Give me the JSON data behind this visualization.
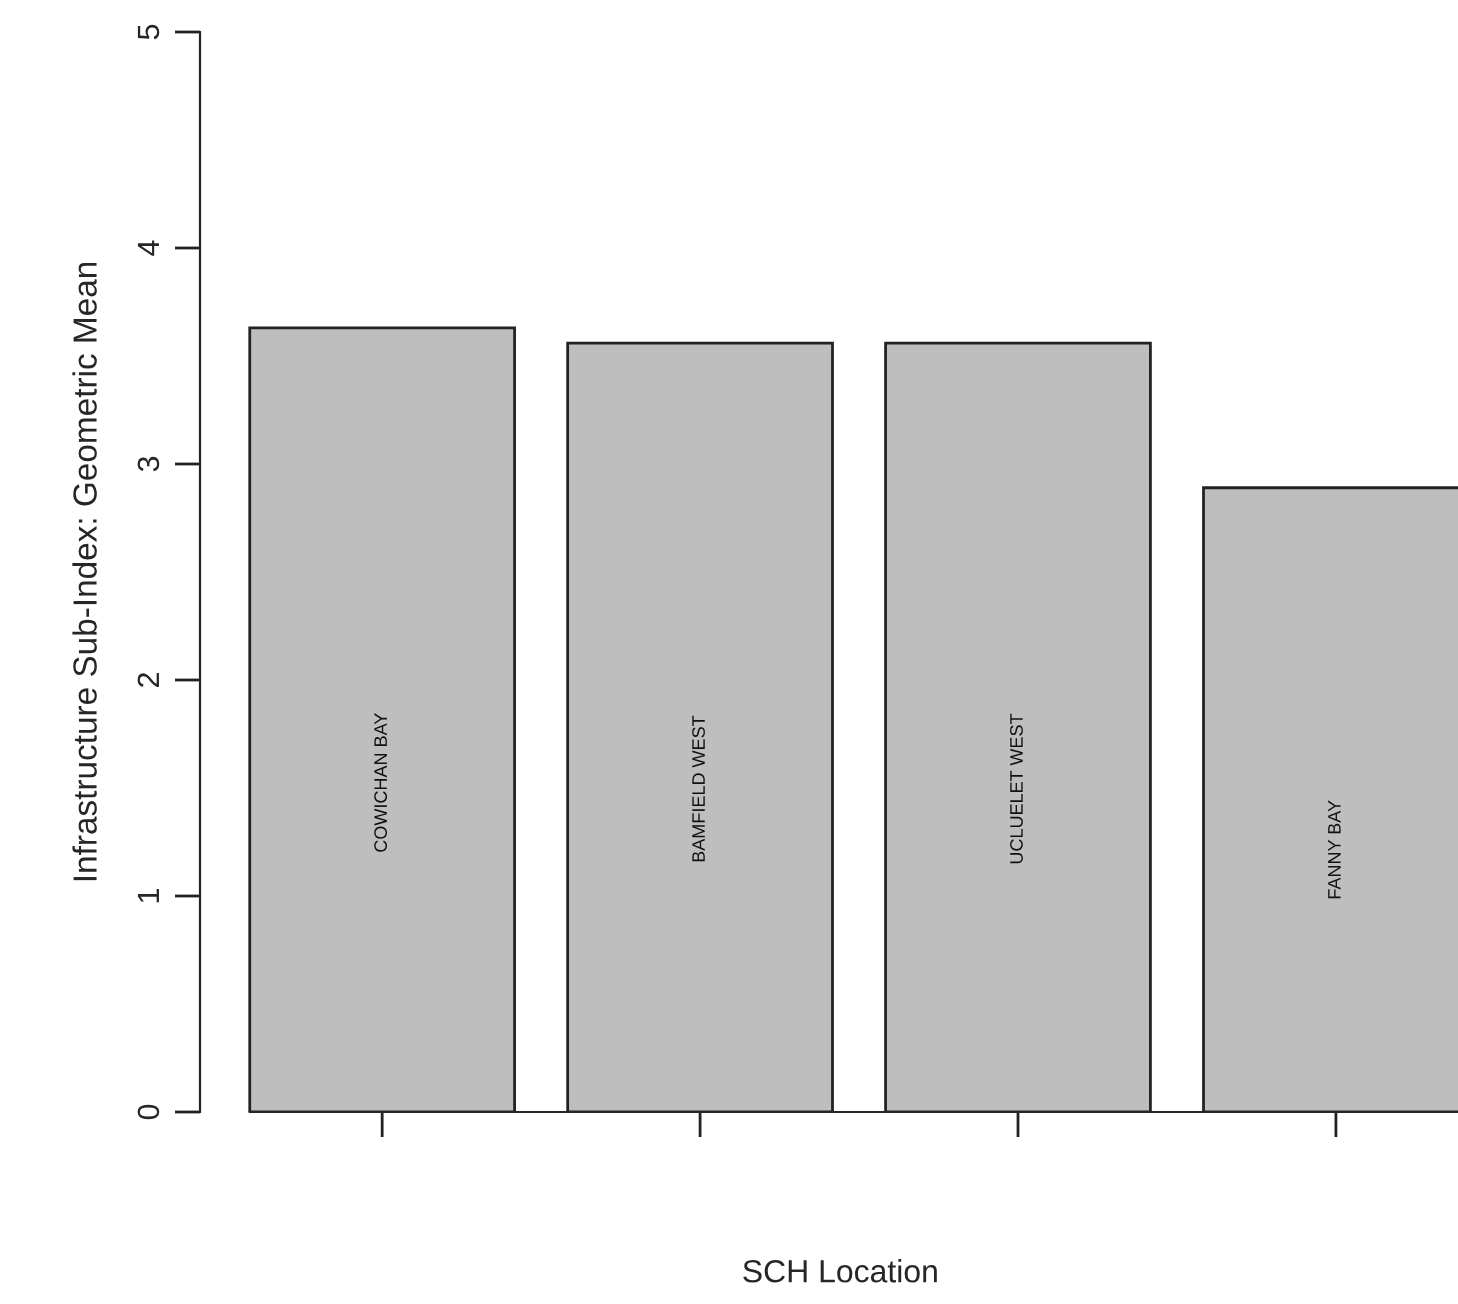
{
  "chart_data": {
    "type": "bar",
    "xlabel": "SCH Location",
    "ylabel": "Infrastructure Sub-Index: Geometric Mean",
    "categories": [
      "COWICHAN BAY",
      "BAMFIELD WEST",
      "UCLUELET WEST",
      "FANNY BAY"
    ],
    "values": [
      3.63,
      3.56,
      3.56,
      2.89
    ],
    "color": "#bebebe",
    "ylim": [
      0,
      5
    ],
    "yticks": [
      0,
      1,
      2,
      3,
      4,
      5
    ]
  }
}
